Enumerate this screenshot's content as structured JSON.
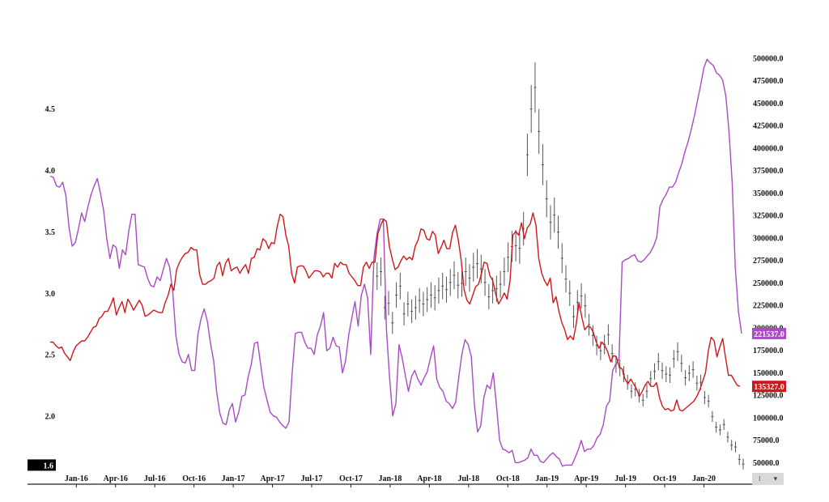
{
  "chart_data": {
    "type": "line",
    "title": "",
    "xlabel": "",
    "ylabel": "",
    "grid": false,
    "x_tick_labels": [
      "Jan-16",
      "Apr-16",
      "Jul-16",
      "Oct-16",
      "Jan-17",
      "Apr-17",
      "Jul-17",
      "Oct-17",
      "Jan-18",
      "Apr-18",
      "Jul-18",
      "Oct-18",
      "Jan-19",
      "Apr-19",
      "Jul-19",
      "Oct-19",
      "Jan-20"
    ],
    "x_range": [
      "2015-11",
      "2020-04"
    ],
    "left_axis": {
      "ticks": [
        "2.0",
        "2.5",
        "3.0",
        "3.5",
        "4.0",
        "4.5"
      ],
      "range": [
        1.55,
        5.0
      ]
    },
    "right_axis": {
      "ticks": [
        "50000.0",
        "75000.0",
        "100000.0",
        "125000.0",
        "150000.0",
        "175000.0",
        "200000.0",
        "225000.0",
        "250000.0",
        "275000.0",
        "300000.0",
        "325000.0",
        "350000.0",
        "375000.0",
        "400000.0",
        "425000.0",
        "450000.0",
        "475000.0",
        "500000.0"
      ],
      "range": [
        40000,
        512000
      ]
    },
    "last_value_tags": [
      {
        "text": "221537.0",
        "series": "purple",
        "color": "#a94bc4"
      },
      {
        "text": "135327.0",
        "series": "red",
        "color": "#d0181b"
      },
      {
        "text": "1.6",
        "series": "left-axis",
        "color": "#000000"
      }
    ],
    "series": [
      {
        "color": "#a94bc4",
        "axis": "left",
        "values": [
          3.95,
          3.94,
          3.87,
          3.86,
          3.9,
          3.79,
          3.53,
          3.38,
          3.41,
          3.52,
          3.65,
          3.58,
          3.7,
          3.8,
          3.87,
          3.93,
          3.81,
          3.67,
          3.44,
          3.28,
          3.39,
          3.37,
          3.2,
          3.35,
          3.31,
          3.5,
          3.64,
          3.64,
          3.23,
          3.22,
          3.21,
          3.12,
          3.06,
          3.05,
          3.13,
          3.1,
          3.19,
          3.28,
          3.21,
          3.01,
          2.65,
          2.5,
          2.44,
          2.43,
          2.5,
          2.37,
          2.37,
          2.66,
          2.79,
          2.87,
          2.77,
          2.59,
          2.45,
          2.19,
          2.02,
          1.94,
          1.93,
          2.05,
          2.1,
          1.95,
          2.03,
          2.16,
          2.17,
          2.32,
          2.42,
          2.59,
          2.6,
          2.41,
          2.23,
          2.13,
          2.03,
          2.0,
          1.99,
          1.95,
          1.92,
          1.9,
          1.95,
          2.35,
          2.67,
          2.68,
          2.68,
          2.6,
          2.55,
          2.55,
          2.5,
          2.66,
          2.73,
          2.84,
          2.53,
          2.55,
          2.64,
          2.57,
          2.56,
          2.35,
          2.45,
          2.66,
          2.8,
          2.93,
          2.73,
          2.98,
          3.07,
          2.96,
          2.5,
          3.28,
          3.48,
          3.6,
          3.6,
          2.7,
          2.31,
          2.0,
          2.1,
          2.58,
          2.47,
          2.33,
          2.2,
          2.32,
          2.37,
          2.3,
          2.25,
          2.31,
          2.36,
          2.47,
          2.57,
          2.3,
          2.23,
          2.2,
          2.12,
          2.1,
          2.06,
          2.11,
          2.31,
          2.5,
          2.62,
          2.58,
          2.48,
          2.09,
          1.87,
          1.92,
          2.15,
          2.25,
          2.22,
          2.35,
          2.09,
          1.8,
          1.73,
          1.72,
          1.7,
          1.72,
          1.62,
          1.62,
          1.63,
          1.64,
          1.66,
          1.73,
          1.68,
          1.68,
          1.63,
          1.62,
          1.65,
          1.68,
          1.7,
          1.67,
          1.65,
          1.59,
          1.6,
          1.6,
          1.6,
          1.66,
          1.72,
          1.8,
          1.71,
          1.73,
          1.73,
          1.76,
          1.82,
          1.85,
          1.93,
          2.08,
          2.12,
          2.37,
          2.42,
          2.46,
          3.25,
          3.27,
          3.28,
          3.3,
          3.31,
          3.26,
          3.25,
          3.27,
          3.3,
          3.33,
          3.38,
          3.45,
          3.7,
          3.76,
          3.8,
          3.86,
          3.86,
          3.9,
          3.98,
          4.05,
          4.15,
          4.23,
          4.33,
          4.44,
          4.57,
          4.69,
          4.83,
          4.9,
          4.87,
          4.85,
          4.79,
          4.77,
          4.73,
          4.6,
          4.31,
          3.9,
          3.21,
          2.85,
          2.67
        ]
      },
      {
        "color": "#d0181b",
        "axis": "left",
        "values": [
          2.6,
          2.6,
          2.57,
          2.55,
          2.56,
          2.51,
          2.48,
          2.45,
          2.52,
          2.57,
          2.59,
          2.61,
          2.61,
          2.64,
          2.68,
          2.72,
          2.73,
          2.79,
          2.81,
          2.85,
          2.85,
          2.9,
          2.96,
          2.82,
          2.88,
          2.93,
          2.84,
          2.95,
          2.91,
          2.86,
          2.9,
          2.94,
          2.9,
          2.81,
          2.82,
          2.84,
          2.86,
          2.85,
          2.84,
          2.84,
          2.92,
          2.98,
          3.07,
          3.02,
          3.19,
          3.25,
          3.29,
          3.32,
          3.33,
          3.37,
          3.35,
          3.35,
          3.15,
          3.07,
          3.07,
          3.09,
          3.1,
          3.12,
          3.22,
          3.25,
          3.14,
          3.24,
          3.28,
          3.18,
          3.2,
          3.21,
          3.16,
          3.2,
          3.23,
          3.16,
          3.28,
          3.29,
          3.36,
          3.35,
          3.44,
          3.42,
          3.36,
          3.41,
          3.4,
          3.54,
          3.64,
          3.62,
          3.47,
          3.38,
          3.16,
          3.08,
          3.21,
          3.22,
          3.22,
          3.18,
          3.12,
          3.15,
          3.18,
          3.18,
          3.17,
          3.13,
          3.16,
          3.16,
          3.12,
          3.24,
          3.21,
          3.25,
          3.23,
          3.23,
          3.16,
          3.13,
          3.1,
          3.06,
          3.06,
          3.21,
          3.25,
          3.2,
          3.25,
          3.25,
          3.48,
          3.55,
          3.6,
          3.58,
          3.38,
          3.28,
          3.19,
          3.21,
          3.26,
          3.3,
          3.27,
          3.29,
          3.27,
          3.38,
          3.43,
          3.52,
          3.51,
          3.44,
          3.43,
          3.5,
          3.47,
          3.32,
          3.37,
          3.43,
          3.36,
          3.36,
          3.49,
          3.55,
          3.43,
          3.27,
          3.03,
          2.94,
          2.91,
          2.98,
          3.05,
          3.07,
          3.15,
          3.25,
          3.24,
          3.14,
          3.1,
          2.99,
          2.91,
          2.95,
          3.0,
          2.95,
          3.1,
          3.47,
          3.5,
          3.47,
          3.57,
          3.44,
          3.53,
          3.56,
          3.65,
          3.55,
          3.28,
          3.16,
          3.1,
          3.06,
          3.12,
          2.92,
          2.97,
          2.85,
          2.76,
          2.7,
          2.62,
          2.65,
          2.62,
          2.74,
          2.92,
          2.8,
          2.7,
          2.73,
          2.72,
          2.68,
          2.6,
          2.55,
          2.6,
          2.57,
          2.52,
          2.44,
          2.49,
          2.48,
          2.4,
          2.38,
          2.3,
          2.26,
          2.3,
          2.26,
          2.22,
          2.16,
          2.2,
          2.25,
          2.28,
          2.24,
          2.24,
          2.27,
          2.15,
          2.08,
          2.05,
          2.06,
          2.04,
          2.05,
          2.13,
          2.05,
          2.04,
          2.06,
          2.08,
          2.1,
          2.12,
          2.16,
          2.21,
          2.28,
          2.35,
          2.53,
          2.64,
          2.61,
          2.48,
          2.56,
          2.63,
          2.47,
          2.33,
          2.33,
          2.29,
          2.25,
          2.24
        ]
      },
      {
        "type": "ohlc",
        "color": "#555555",
        "axis": "right",
        "start": "2017-12",
        "end": "2020-04",
        "values": [
          257000,
          262000,
          222000,
          227000,
          205000,
          236000,
          246000,
          215000,
          226000,
          218000,
          222000,
          230000,
          226000,
          231000,
          236000,
          233000,
          241000,
          246000,
          242000,
          250000,
          258000,
          247000,
          249000,
          262000,
          255000,
          267000,
          271000,
          265000,
          250000,
          234000,
          241000,
          243000,
          248000,
          262000,
          278000,
          290000,
          291000,
          288000,
          310000,
          392000,
          443000,
          467000,
          418000,
          381000,
          343000,
          317000,
          325000,
          306000,
          277000,
          254000,
          238000,
          212000,
          228000,
          235000,
          224000,
          203000,
          191000,
          180000,
          174000,
          181000,
          192000,
          171000,
          159000,
          155000,
          148000,
          139000,
          129000,
          131000,
          124000,
          119000,
          129000,
          143000,
          151000,
          162000,
          152000,
          148000,
          147000,
          165000,
          173000,
          160000,
          144000,
          149000,
          153000,
          138000,
          139000,
          122000,
          118000,
          101000,
          89000,
          86000,
          92000,
          78000,
          69000,
          67000,
          53000,
          48000
        ]
      }
    ]
  }
}
